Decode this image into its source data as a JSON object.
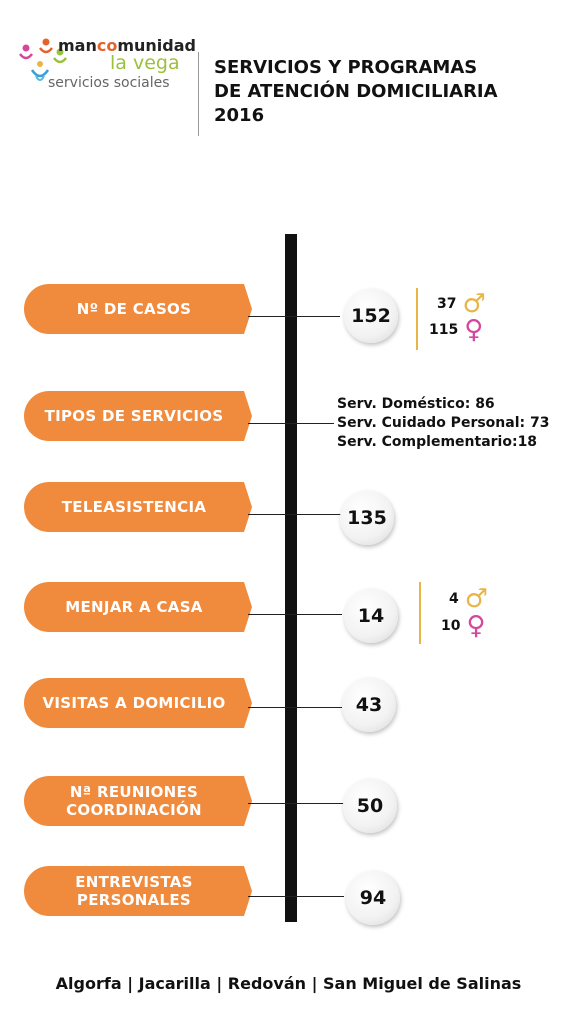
{
  "logo": {
    "line1_prefix": "man",
    "line1_accent": "co",
    "line1_suffix": "munidad",
    "line2": "la vega",
    "line3": "servicios sociales"
  },
  "header": {
    "title_line1": "SERVICIOS Y PROGRAMAS",
    "title_line2": "DE ATENCIÓN DOMICILIARIA",
    "title_line3": "2016"
  },
  "rows": [
    {
      "label": "Nº DE CASOS",
      "value": "152",
      "male": "37",
      "female": "115"
    },
    {
      "label": "TIPOS DE SERVICIOS",
      "services": [
        "Serv. Doméstico: 86",
        "Serv. Cuidado Personal: 73",
        "Serv. Complementario:18"
      ]
    },
    {
      "label": "TELEASISTENCIA",
      "value": "135"
    },
    {
      "label": "MENJAR A CASA",
      "value": "14",
      "male": "4",
      "female": "10"
    },
    {
      "label": "VISITAS A DOMICILIO",
      "value": "43"
    },
    {
      "label_line1": "Nª REUNIONES",
      "label_line2": "COORDINACIÓN",
      "value": "50"
    },
    {
      "label_line1": "ENTREVISTAS",
      "label_line2": "PERSONALES",
      "value": "94"
    }
  ],
  "symbols": {
    "male": "♂",
    "female": "♀"
  },
  "colors": {
    "accent": "#f08a3c",
    "male": "#e8b646",
    "female": "#d6479b",
    "logo_green": "#9bc13c"
  },
  "footer": "Algorfa  | Jacarilla | Redován | San Miguel de Salinas"
}
